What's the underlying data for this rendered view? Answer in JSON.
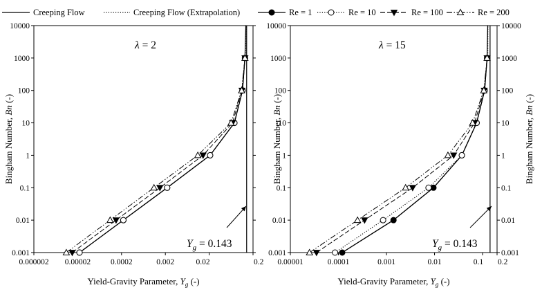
{
  "legend": [
    {
      "label": "Creeping Flow",
      "style": "solid",
      "marker": "none"
    },
    {
      "label": "Creeping Flow (Extrapolation)",
      "style": "dotted",
      "marker": "none"
    },
    {
      "label": "Re = 1",
      "style": "solid",
      "marker": "filled-circle"
    },
    {
      "label": "Re = 10",
      "style": "dotted",
      "marker": "open-circle"
    },
    {
      "label": "Re = 100",
      "style": "dashed",
      "marker": "filled-triangle-down"
    },
    {
      "label": "Re = 200",
      "style": "dashdotdot",
      "marker": "open-triangle-up"
    }
  ],
  "chart_data": [
    {
      "type": "line",
      "annotation": "λ = 2",
      "arrow_note": "Y_g = 0.143",
      "xlabel": "Yield-Gravity Parameter, Y_g (-)",
      "ylabel": "Bingham Number, Bn (-)",
      "xscale": "log",
      "yscale": "log",
      "xlim": [
        2e-06,
        0.2
      ],
      "ylim": [
        0.001,
        10000
      ],
      "xticks": [
        "0.000002",
        "0.00002",
        "0.0002",
        "0.002",
        "0.02",
        "0.2"
      ],
      "yticks": [
        "0.001",
        "0.01",
        "0.1",
        "1",
        "10",
        "100",
        "1000",
        "10000"
      ],
      "asymptote_x": 0.143,
      "series": [
        {
          "name": "Creeping Flow",
          "x": [
            2.2e-05,
            0.00022,
            0.0022,
            0.021,
            0.075,
            0.115,
            0.131,
            0.137,
            0.138
          ],
          "y": [
            0.001,
            0.01,
            0.1,
            1,
            10,
            100,
            1000,
            10000,
            10000
          ]
        },
        {
          "name": "Re = 1",
          "x": [
            2.2e-05,
            0.00022,
            0.0022,
            0.021,
            0.075,
            0.115,
            0.131
          ],
          "y": [
            0.001,
            0.01,
            0.1,
            1,
            10,
            100,
            1000
          ]
        },
        {
          "name": "Re = 10",
          "x": [
            2.2e-05,
            0.00022,
            0.0022,
            0.021,
            0.075,
            0.115,
            0.131
          ],
          "y": [
            0.001,
            0.01,
            0.1,
            1,
            10,
            100,
            1000
          ]
        },
        {
          "name": "Re = 100",
          "x": [
            1.5e-05,
            0.00015,
            0.0015,
            0.0145,
            0.068,
            0.112,
            0.131
          ],
          "y": [
            0.001,
            0.01,
            0.1,
            1,
            10,
            100,
            1000
          ]
        },
        {
          "name": "Re = 200",
          "x": [
            1.1e-05,
            0.00011,
            0.0011,
            0.011,
            0.063,
            0.11,
            0.131
          ],
          "y": [
            0.001,
            0.01,
            0.1,
            1,
            10,
            100,
            1000
          ]
        }
      ]
    },
    {
      "type": "line",
      "annotation": "λ = 15",
      "arrow_note": "Y_g = 0.143",
      "xlabel": "Yield-Gravity Parameter, Y_g (-)",
      "ylabel": "Bingham Number, Bn (-)",
      "xscale": "log",
      "yscale": "log",
      "xlim": [
        1e-05,
        0.2
      ],
      "ylim": [
        0.001,
        10000
      ],
      "xticks": [
        "0.00001",
        "0.0001",
        "0.001",
        "0.01",
        "0.1",
        "0.2"
      ],
      "yticks": [
        "0.001",
        "0.01",
        "0.1",
        "1",
        "10",
        "100",
        "1000",
        "10000"
      ],
      "asymptote_x": 0.143,
      "series": [
        {
          "name": "Creeping Flow",
          "x": [
            0.00012,
            0.0014,
            0.0095,
            0.037,
            0.075,
            0.11,
            0.124,
            0.128,
            0.129
          ],
          "y": [
            0.001,
            0.01,
            0.1,
            1,
            10,
            100,
            1000,
            10000,
            10000
          ]
        },
        {
          "name": "Re = 1",
          "x": [
            0.00012,
            0.0014,
            0.0095,
            0.037,
            0.075,
            0.11,
            0.124
          ],
          "y": [
            0.001,
            0.01,
            0.1,
            1,
            10,
            100,
            1000
          ]
        },
        {
          "name": "Re = 10",
          "x": [
            8.5e-05,
            0.00085,
            0.0075,
            0.037,
            0.075,
            0.11,
            0.124
          ],
          "y": [
            0.001,
            0.01,
            0.1,
            1,
            10,
            100,
            1000
          ]
        },
        {
          "name": "Re = 100",
          "x": [
            3.5e-05,
            0.00035,
            0.0035,
            0.025,
            0.068,
            0.108,
            0.124
          ],
          "y": [
            0.001,
            0.01,
            0.1,
            1,
            10,
            100,
            1000
          ]
        },
        {
          "name": "Re = 200",
          "x": [
            2.5e-05,
            0.00025,
            0.0025,
            0.019,
            0.062,
            0.106,
            0.124
          ],
          "y": [
            0.001,
            0.01,
            0.1,
            1,
            10,
            100,
            1000
          ]
        }
      ]
    }
  ]
}
